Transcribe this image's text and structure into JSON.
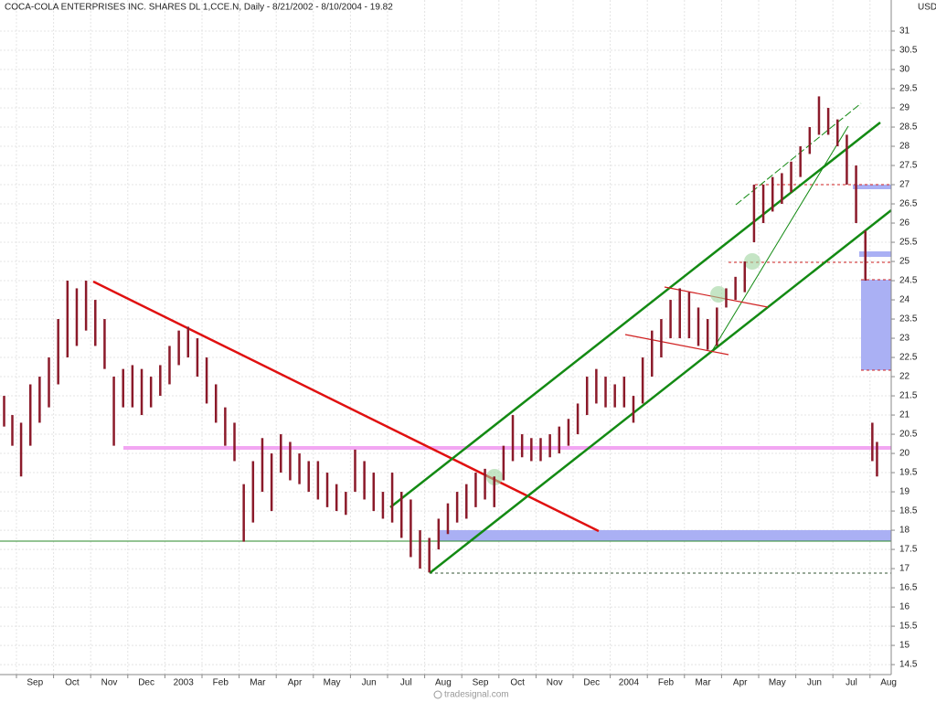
{
  "chart_data": {
    "type": "ohlc",
    "title": "COCA-COLA ENTERPRISES INC. SHARES DL 1,CCE.N, Daily - 8/21/2002 - 8/10/2004 - 19.82",
    "unit_label": "USD",
    "footer": "tradesignal.com",
    "color": "#8b1a2a",
    "categories": [
      null,
      "Sep",
      "Oct",
      "Nov",
      "Dec",
      "2003",
      "Feb",
      "Mar",
      "Apr",
      "May",
      "Jun",
      "Jul",
      "Aug",
      "Sep",
      "Oct",
      "Nov",
      "Dec",
      "2004",
      "Feb",
      "Mar",
      "Apr",
      "May",
      "Jun",
      "Jul",
      "Aug"
    ],
    "high": [
      [
        21.5,
        21.0
      ],
      [
        20.8,
        21.8,
        22.0,
        22.5
      ],
      [
        23.5,
        24.5,
        24.3,
        24.5
      ],
      [
        24.0,
        23.5,
        22.0,
        22.2
      ],
      [
        22.3,
        22.2,
        22.0,
        22.3
      ],
      [
        22.8,
        23.2,
        23.3,
        23.0
      ],
      [
        22.5,
        21.8,
        21.2,
        20.8
      ],
      [
        19.2,
        19.8,
        20.4,
        20.0
      ],
      [
        20.5,
        20.3,
        20.0,
        19.8
      ],
      [
        19.8,
        19.5,
        19.2,
        19.0
      ],
      [
        20.1,
        19.8,
        19.5,
        19.0
      ],
      [
        19.5,
        19.0,
        18.8,
        18.0
      ],
      [
        17.8,
        18.3,
        18.7,
        19.0
      ],
      [
        19.2,
        19.5,
        19.6,
        19.4
      ],
      [
        20.2,
        21.0,
        20.5,
        20.4
      ],
      [
        20.4,
        20.5,
        20.7,
        20.9
      ],
      [
        21.3,
        22.0,
        22.2,
        22.0
      ],
      [
        21.8,
        22.0,
        21.5,
        22.5
      ],
      [
        23.2,
        23.5,
        24.0,
        24.3
      ],
      [
        24.2,
        23.8,
        23.5,
        23.8
      ],
      [
        24.3,
        24.6,
        25.0,
        27.0
      ],
      [
        27.0,
        27.2,
        27.3,
        27.6
      ],
      [
        28.0,
        28.5,
        29.3,
        29.0
      ],
      [
        28.7,
        28.3,
        27.5,
        25.8
      ],
      [
        20.8,
        20.3
      ]
    ],
    "low": [
      [
        20.7,
        20.2
      ],
      [
        19.4,
        20.2,
        20.8,
        21.2
      ],
      [
        21.8,
        22.5,
        22.8,
        23.2
      ],
      [
        22.8,
        22.2,
        20.2,
        21.2
      ],
      [
        21.2,
        21.0,
        21.2,
        21.5
      ],
      [
        21.8,
        22.3,
        22.5,
        22.0
      ],
      [
        21.3,
        20.8,
        20.2,
        19.8
      ],
      [
        17.7,
        18.2,
        19.0,
        18.5
      ],
      [
        19.5,
        19.3,
        19.2,
        19.0
      ],
      [
        18.8,
        18.6,
        18.5,
        18.4
      ],
      [
        19.0,
        18.8,
        18.5,
        18.3
      ],
      [
        18.2,
        17.8,
        17.3,
        17.0
      ],
      [
        16.9,
        17.5,
        17.9,
        18.2
      ],
      [
        18.3,
        18.6,
        18.8,
        18.6
      ],
      [
        19.3,
        19.8,
        19.9,
        19.8
      ],
      [
        19.8,
        19.9,
        20.0,
        20.2
      ],
      [
        20.5,
        21.0,
        21.3,
        21.2
      ],
      [
        21.2,
        21.2,
        20.8,
        21.3
      ],
      [
        22.0,
        22.5,
        23.0,
        23.0
      ],
      [
        23.0,
        22.8,
        22.7,
        22.8
      ],
      [
        23.8,
        24.0,
        24.2,
        25.5
      ],
      [
        26.0,
        26.3,
        26.5,
        26.8
      ],
      [
        27.2,
        27.8,
        28.3,
        28.3
      ],
      [
        28.0,
        27.0,
        26.0,
        24.5
      ],
      [
        19.8,
        19.4
      ]
    ],
    "ylim": [
      14.24,
      31.81
    ],
    "yticks": [
      14.5,
      15,
      15.5,
      16,
      16.5,
      17,
      17.5,
      18,
      18.5,
      19,
      19.5,
      20,
      20.5,
      21,
      21.5,
      22,
      22.5,
      23,
      23.5,
      24,
      24.5,
      25,
      25.5,
      26,
      26.5,
      27,
      27.5,
      28,
      28.5,
      29,
      29.5,
      30,
      30.5,
      31
    ],
    "grid": true
  }
}
